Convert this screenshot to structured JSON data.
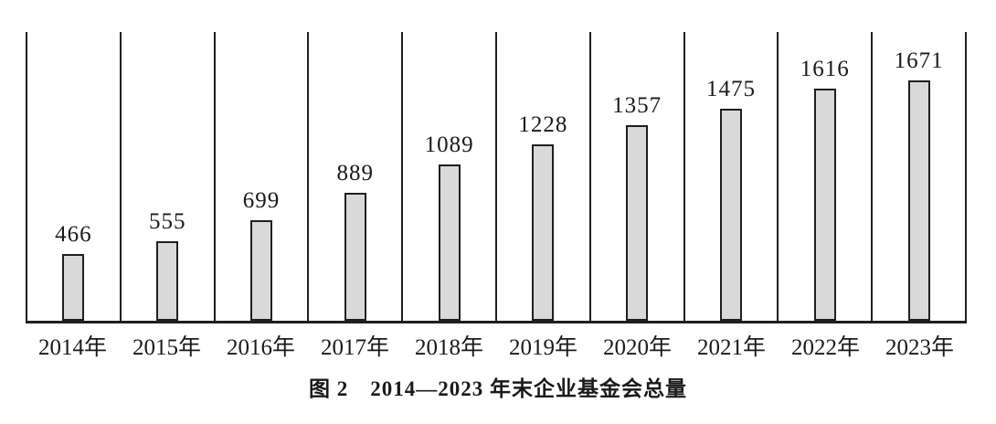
{
  "figure": {
    "caption": "图 2　2014—2023 年末企业基金会总量"
  },
  "chart_data": {
    "type": "bar",
    "title": "图 2 2014—2023 年末企业基金会总量",
    "categories": [
      "2014年",
      "2015年",
      "2016年",
      "2017年",
      "2018年",
      "2019年",
      "2020年",
      "2021年",
      "2022年",
      "2023年"
    ],
    "values": [
      466,
      555,
      699,
      889,
      1089,
      1228,
      1357,
      1475,
      1616,
      1671
    ],
    "xlabel": "",
    "ylabel": "",
    "ylim": [
      0,
      2008
    ],
    "grid": "vertical-dividers-only",
    "legend_position": "none",
    "data_labels": "above-bars",
    "bar_fill_color": "#d9d9d9",
    "bar_border_color": "#1f1f1f",
    "axis_line_color": "#1f1f1f",
    "background_color": "#ffffff"
  }
}
